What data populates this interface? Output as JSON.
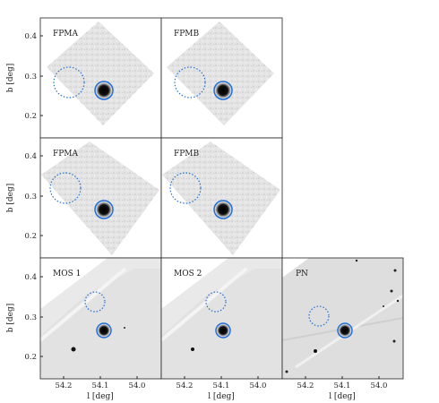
{
  "figure": {
    "y_axis_label": "b [deg]",
    "x_axis_label": "l [deg]",
    "y_ticks": [
      "0.4",
      "0.3",
      "0.2"
    ],
    "x_ticks": [
      "54.2",
      "54.1",
      "54.0"
    ],
    "source_circle_color": "#1f6fd6",
    "background_circle_color": "#1f6fd6",
    "panels": [
      {
        "label": "FPMA"
      },
      {
        "label": "FPMB"
      },
      {
        "label": "FPMA"
      },
      {
        "label": "FPMB"
      },
      {
        "label": "MOS 1"
      },
      {
        "label": "MOS 2"
      },
      {
        "label": "PN"
      }
    ]
  }
}
